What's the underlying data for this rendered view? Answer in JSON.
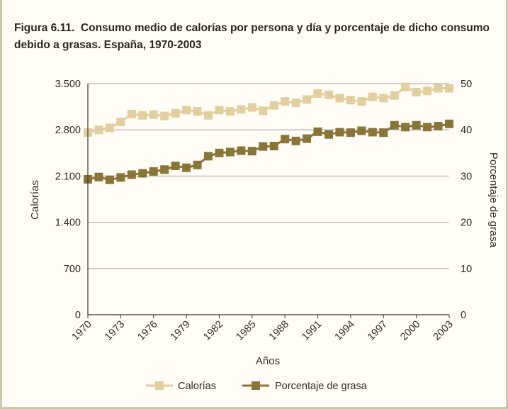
{
  "figure": {
    "label": "Figura 6.11.",
    "title": "Consumo medio de calorías por persona y día y porcentaje de dicho consumo debido a grasas. España, 1970-2003"
  },
  "colors": {
    "calorias": "#e2cfa0",
    "grasa": "#8a7539",
    "grid": "#b9b9b9",
    "axis": "#3a3630",
    "background": "#fffdf6"
  },
  "chart_data": {
    "type": "line",
    "x_label": "Años",
    "y_label_left": "Calorías",
    "y_label_right": "Porcentaje de grasa",
    "x_tick_labels": [
      "1970",
      "1973",
      "1976",
      "1979",
      "1982",
      "1985",
      "1988",
      "1991",
      "1994",
      "1997",
      "2000",
      "2003"
    ],
    "x_range": [
      1970,
      2003
    ],
    "y_left_range": [
      0,
      3500
    ],
    "y_left_ticks": [
      0,
      700,
      1400,
      2100,
      2800,
      3500
    ],
    "y_left_tick_labels": [
      "0",
      "700",
      "1.400",
      "2.100",
      "2.800",
      "3.500"
    ],
    "y_right_range": [
      0,
      50
    ],
    "y_right_ticks": [
      0,
      10,
      20,
      30,
      40,
      50
    ],
    "y_right_tick_labels": [
      "0",
      "10",
      "20",
      "30",
      "40",
      "50"
    ],
    "grid": "horizontal",
    "legend_position": "bottom",
    "x": [
      1970,
      1971,
      1972,
      1973,
      1974,
      1975,
      1976,
      1977,
      1978,
      1979,
      1980,
      1981,
      1982,
      1983,
      1984,
      1985,
      1986,
      1987,
      1988,
      1989,
      1990,
      1991,
      1992,
      1993,
      1994,
      1995,
      1996,
      1997,
      1998,
      1999,
      2000,
      2001,
      2002,
      2003
    ],
    "series": [
      {
        "name": "Calorías",
        "axis": "left",
        "values": [
          2760,
          2800,
          2830,
          2920,
          3040,
          3020,
          3030,
          3010,
          3050,
          3100,
          3080,
          3020,
          3100,
          3080,
          3110,
          3140,
          3090,
          3170,
          3230,
          3210,
          3260,
          3350,
          3330,
          3280,
          3250,
          3230,
          3300,
          3280,
          3320,
          3450,
          3370,
          3390,
          3430,
          3430
        ]
      },
      {
        "name": "Porcentaje de grasa",
        "axis": "right",
        "values": [
          29.3,
          29.8,
          29.2,
          29.7,
          30.3,
          30.6,
          31.0,
          31.4,
          32.2,
          31.8,
          32.4,
          34.3,
          35.0,
          35.2,
          35.5,
          35.4,
          36.4,
          36.5,
          38.0,
          37.6,
          38.1,
          39.6,
          39.0,
          39.5,
          39.4,
          39.8,
          39.5,
          39.4,
          41.0,
          40.6,
          41.0,
          40.6,
          40.8,
          41.3
        ]
      }
    ]
  }
}
